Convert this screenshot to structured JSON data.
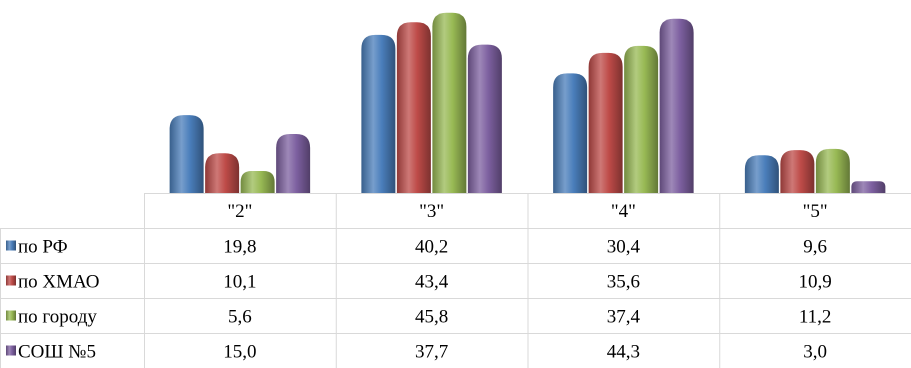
{
  "chart_data": {
    "type": "bar",
    "categories": [
      "\"2\"",
      "\"3\"",
      "\"4\"",
      "\"5\""
    ],
    "series": [
      {
        "name": "по РФ",
        "color": "#4a7ebb",
        "values": [
          19.8,
          40.2,
          30.4,
          9.6
        ],
        "labels": [
          "19,8",
          "40,2",
          "30,4",
          "9,6"
        ]
      },
      {
        "name": "по ХМАО",
        "color": "#be4b48",
        "values": [
          10.1,
          43.4,
          35.6,
          10.9
        ],
        "labels": [
          "10,1",
          "43,4",
          "35,6",
          "10,9"
        ]
      },
      {
        "name": "по городу",
        "color": "#98b954",
        "values": [
          5.6,
          45.8,
          37.4,
          11.2
        ],
        "labels": [
          "5,6",
          "45,8",
          "37,4",
          "11,2"
        ]
      },
      {
        "name": "СОШ №5",
        "color": "#7d60a0",
        "values": [
          15.0,
          37.7,
          44.3,
          3.0
        ],
        "labels": [
          "15,0",
          "37,7",
          "44,3",
          "3,0"
        ]
      }
    ],
    "ylim": [
      0,
      46
    ],
    "grid": false,
    "legend": "data-table",
    "title": "",
    "xlabel": "",
    "ylabel": ""
  }
}
